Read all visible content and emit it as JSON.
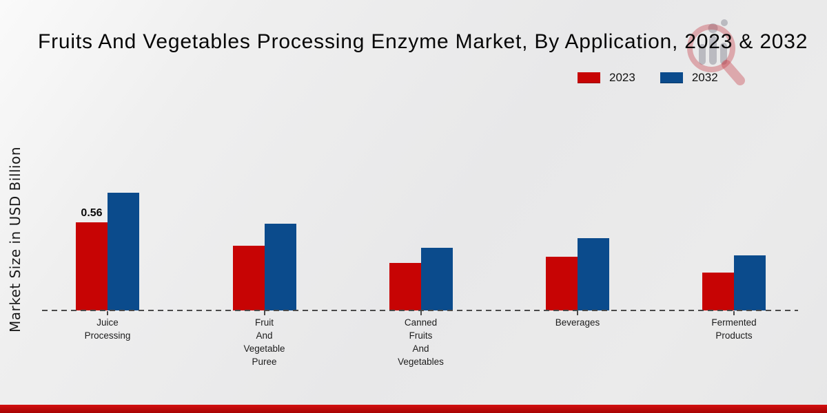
{
  "title": "Fruits And Vegetables Processing Enzyme Market, By Application, 2023 & 2032",
  "y_axis_label": "Market Size in USD Billion",
  "legend": {
    "items": [
      {
        "label": "2023",
        "color": "#c70404"
      },
      {
        "label": "2032",
        "color": "#0b4b8c"
      }
    ]
  },
  "watermark_icon": "magnifier-bar-chart-logo",
  "footer": {
    "bar_color": "#b00606"
  },
  "chart_data": {
    "type": "bar",
    "title": "Fruits And Vegetables Processing Enzyme Market, By Application, 2023 & 2032",
    "xlabel": "",
    "ylabel": "Market Size in USD Billion",
    "categories": [
      "Juice\nProcessing",
      "Fruit\nAnd\nVegetable\nPuree",
      "Canned\nFruits\nAnd\nVegetables",
      "Beverages",
      "Fermented\nProducts"
    ],
    "series": [
      {
        "name": "2023",
        "color": "#c70404",
        "values": [
          0.56,
          0.41,
          0.3,
          0.34,
          0.24
        ]
      },
      {
        "name": "2032",
        "color": "#0b4b8c",
        "values": [
          0.75,
          0.55,
          0.4,
          0.46,
          0.35
        ]
      }
    ],
    "bar_value_labels": [
      {
        "series": "2023",
        "category_index": 0,
        "text": "0.56"
      }
    ],
    "ylim": [
      0,
      0.9
    ],
    "grid": false,
    "y_ticks_visible": false,
    "baseline_style": "dashed",
    "legend_position": "top-right"
  }
}
